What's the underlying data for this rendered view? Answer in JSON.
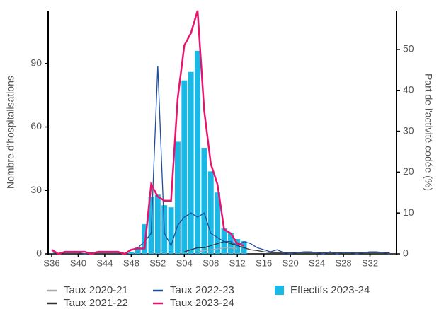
{
  "chart_data": {
    "type": "combo",
    "y_label": "Nombre d'hospitalisations",
    "y2_label": "Part de l'activité codée (%)",
    "categories": [
      "S36",
      null,
      null,
      null,
      "S40",
      null,
      null,
      null,
      "S44",
      null,
      null,
      null,
      "S48",
      null,
      null,
      null,
      "S52",
      null,
      null,
      null,
      "S04",
      null,
      null,
      null,
      "S08",
      null,
      null,
      null,
      "S12",
      null,
      null,
      null,
      "S16",
      null,
      null,
      null,
      "S20",
      null,
      null,
      null,
      "S24",
      null,
      null,
      null,
      "S28",
      null,
      null,
      null,
      "S32",
      null,
      null,
      null
    ],
    "ylim": [
      0,
      115
    ],
    "yticks": [
      0,
      30,
      60,
      90
    ],
    "y2lim": [
      0,
      59.5
    ],
    "y2ticks": [
      0,
      10,
      20,
      30,
      40,
      50
    ],
    "series": [
      {
        "name": "Taux 2020-21",
        "type": "line",
        "axis": "y2",
        "color": "#aaaaaa",
        "values": [
          null,
          null,
          null,
          null,
          null,
          null,
          null,
          null,
          null,
          null,
          null,
          null,
          null,
          null,
          null,
          null,
          null,
          null,
          null,
          null,
          null,
          null,
          0.5,
          0.8,
          1,
          1.2,
          1.5,
          1.5,
          1.2,
          null,
          null,
          null,
          null,
          null,
          null,
          null,
          null,
          null,
          null,
          null,
          null,
          null,
          null,
          null,
          null,
          null,
          null,
          null,
          null,
          null,
          null,
          null
        ]
      },
      {
        "name": "Taux 2021-22",
        "type": "line",
        "axis": "y2",
        "color": "#333333",
        "values": [
          null,
          null,
          null,
          null,
          null,
          null,
          null,
          null,
          null,
          null,
          null,
          null,
          null,
          null,
          null,
          null,
          null,
          null,
          null,
          null,
          0.5,
          1,
          1.5,
          1.5,
          2,
          2.5,
          3,
          2.5,
          2,
          1.5,
          1,
          0.8,
          0.5,
          0.3,
          0.3,
          0.3,
          0.3,
          0.3,
          0.3,
          0.3,
          0.3,
          0.3,
          0.3,
          0.3,
          0.3,
          0.3,
          0.3,
          0.3,
          0.3,
          0.3,
          0.3,
          0.3
        ]
      },
      {
        "name": "Taux 2022-23",
        "type": "line",
        "axis": "y2",
        "color": "#1f4e9b",
        "values": [
          0.5,
          0,
          0.3,
          0.3,
          0.3,
          0,
          0.3,
          0.3,
          0.3,
          0.3,
          0.3,
          0,
          1,
          1.5,
          3,
          5,
          46,
          5,
          2,
          7,
          9,
          10,
          9,
          10,
          5,
          4,
          3,
          3,
          2,
          3,
          2.5,
          1.5,
          1,
          0.5,
          1,
          0.3,
          0,
          0.3,
          0.5,
          0.5,
          0.3,
          0,
          0.5,
          0,
          0.3,
          0.3,
          0,
          0.3,
          0.5,
          0.5,
          0.3,
          0
        ]
      },
      {
        "name": "Taux 2023-24",
        "type": "line",
        "axis": "y2",
        "color": "#e8136d",
        "values": [
          1,
          0,
          0.5,
          0.5,
          0.5,
          0.5,
          0,
          0.5,
          0.5,
          0.5,
          0.5,
          0,
          1,
          1.3,
          1.3,
          17,
          14,
          13,
          13,
          38,
          51,
          54,
          59.5,
          35,
          22,
          17,
          6,
          5,
          2.5,
          2,
          null,
          null,
          null,
          null,
          null,
          null,
          null,
          null,
          null,
          null,
          null,
          null,
          null,
          null,
          null,
          null,
          null,
          null,
          null,
          null,
          null,
          null
        ]
      },
      {
        "name": "Effectifs 2023-24",
        "type": "bar",
        "axis": "y",
        "color": "#1ab8e6",
        "values": [
          null,
          null,
          null,
          null,
          null,
          null,
          null,
          null,
          null,
          null,
          null,
          null,
          1,
          3,
          14,
          27,
          28,
          23,
          22,
          53,
          82,
          86,
          96,
          50,
          39,
          29,
          12,
          10,
          7,
          6,
          null,
          null,
          null,
          null,
          null,
          null,
          null,
          null,
          null,
          null,
          null,
          null,
          null,
          null,
          null,
          null,
          null,
          null,
          null,
          null,
          null,
          null
        ]
      }
    ]
  }
}
